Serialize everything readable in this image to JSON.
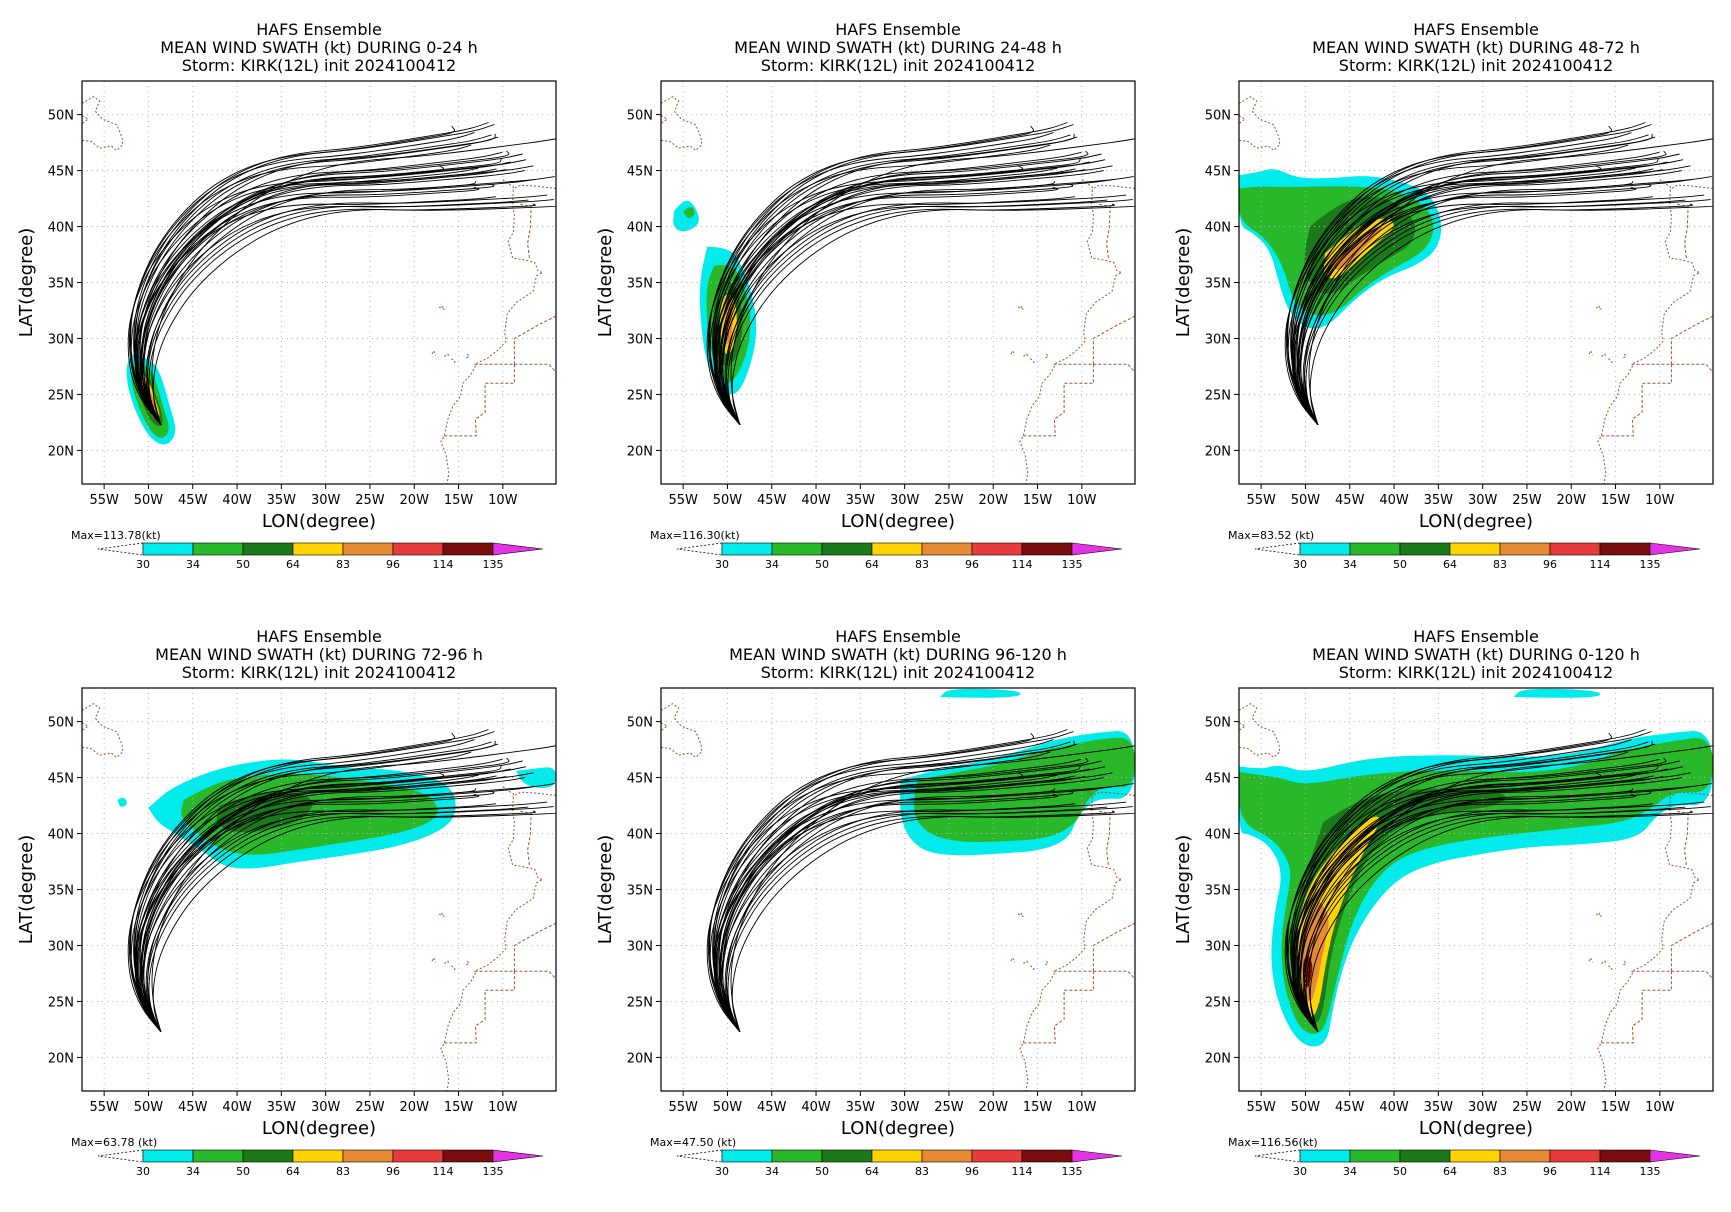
{
  "figure": {
    "common": {
      "model_title": "HAFS Ensemble",
      "storm_line": "Storm: KIRK(12L) init 2024100412",
      "xlabel": "LON(degree)",
      "ylabel": "LAT(degree)",
      "lon_ticks": [
        "55W",
        "50W",
        "45W",
        "40W",
        "35W",
        "30W",
        "25W",
        "20W",
        "15W",
        "10W"
      ],
      "lat_ticks": [
        "20N",
        "25N",
        "30N",
        "35N",
        "40N",
        "45N",
        "50N"
      ],
      "colorbar_levels": [
        "30",
        "34",
        "50",
        "64",
        "83",
        "96",
        "114",
        "135"
      ],
      "colorbar_colors": [
        "#00ebeb",
        "#29b829",
        "#1a7a1a",
        "#ffd400",
        "#e68a33",
        "#e63c3c",
        "#7a0e0e",
        "#e433e4"
      ],
      "track_color": "#000000",
      "coast_color": "#a0522d"
    },
    "panels": [
      {
        "id": "p1",
        "period_line": "MEAN WIND SWATH (kt) DURING  0-24 h",
        "max_label": "Max=113.78(kt)",
        "max_kt": 113.78
      },
      {
        "id": "p2",
        "period_line": "MEAN WIND SWATH (kt) DURING 24-48 h",
        "max_label": "Max=116.30(kt)",
        "max_kt": 116.3
      },
      {
        "id": "p3",
        "period_line": "MEAN WIND SWATH (kt) DURING 48-72 h",
        "max_label": "Max=83.52 (kt)",
        "max_kt": 83.52
      },
      {
        "id": "p4",
        "period_line": "MEAN WIND SWATH (kt) DURING 72-96 h",
        "max_label": "Max=63.78 (kt)",
        "max_kt": 63.78
      },
      {
        "id": "p5",
        "period_line": "MEAN WIND SWATH (kt) DURING 96-120 h",
        "max_label": "Max=47.50 (kt)",
        "max_kt": 47.5
      },
      {
        "id": "p6",
        "period_line": "MEAN WIND SWATH (kt) DURING 0-120 h",
        "max_label": "Max=116.56(kt)",
        "max_kt": 116.56
      }
    ]
  }
}
